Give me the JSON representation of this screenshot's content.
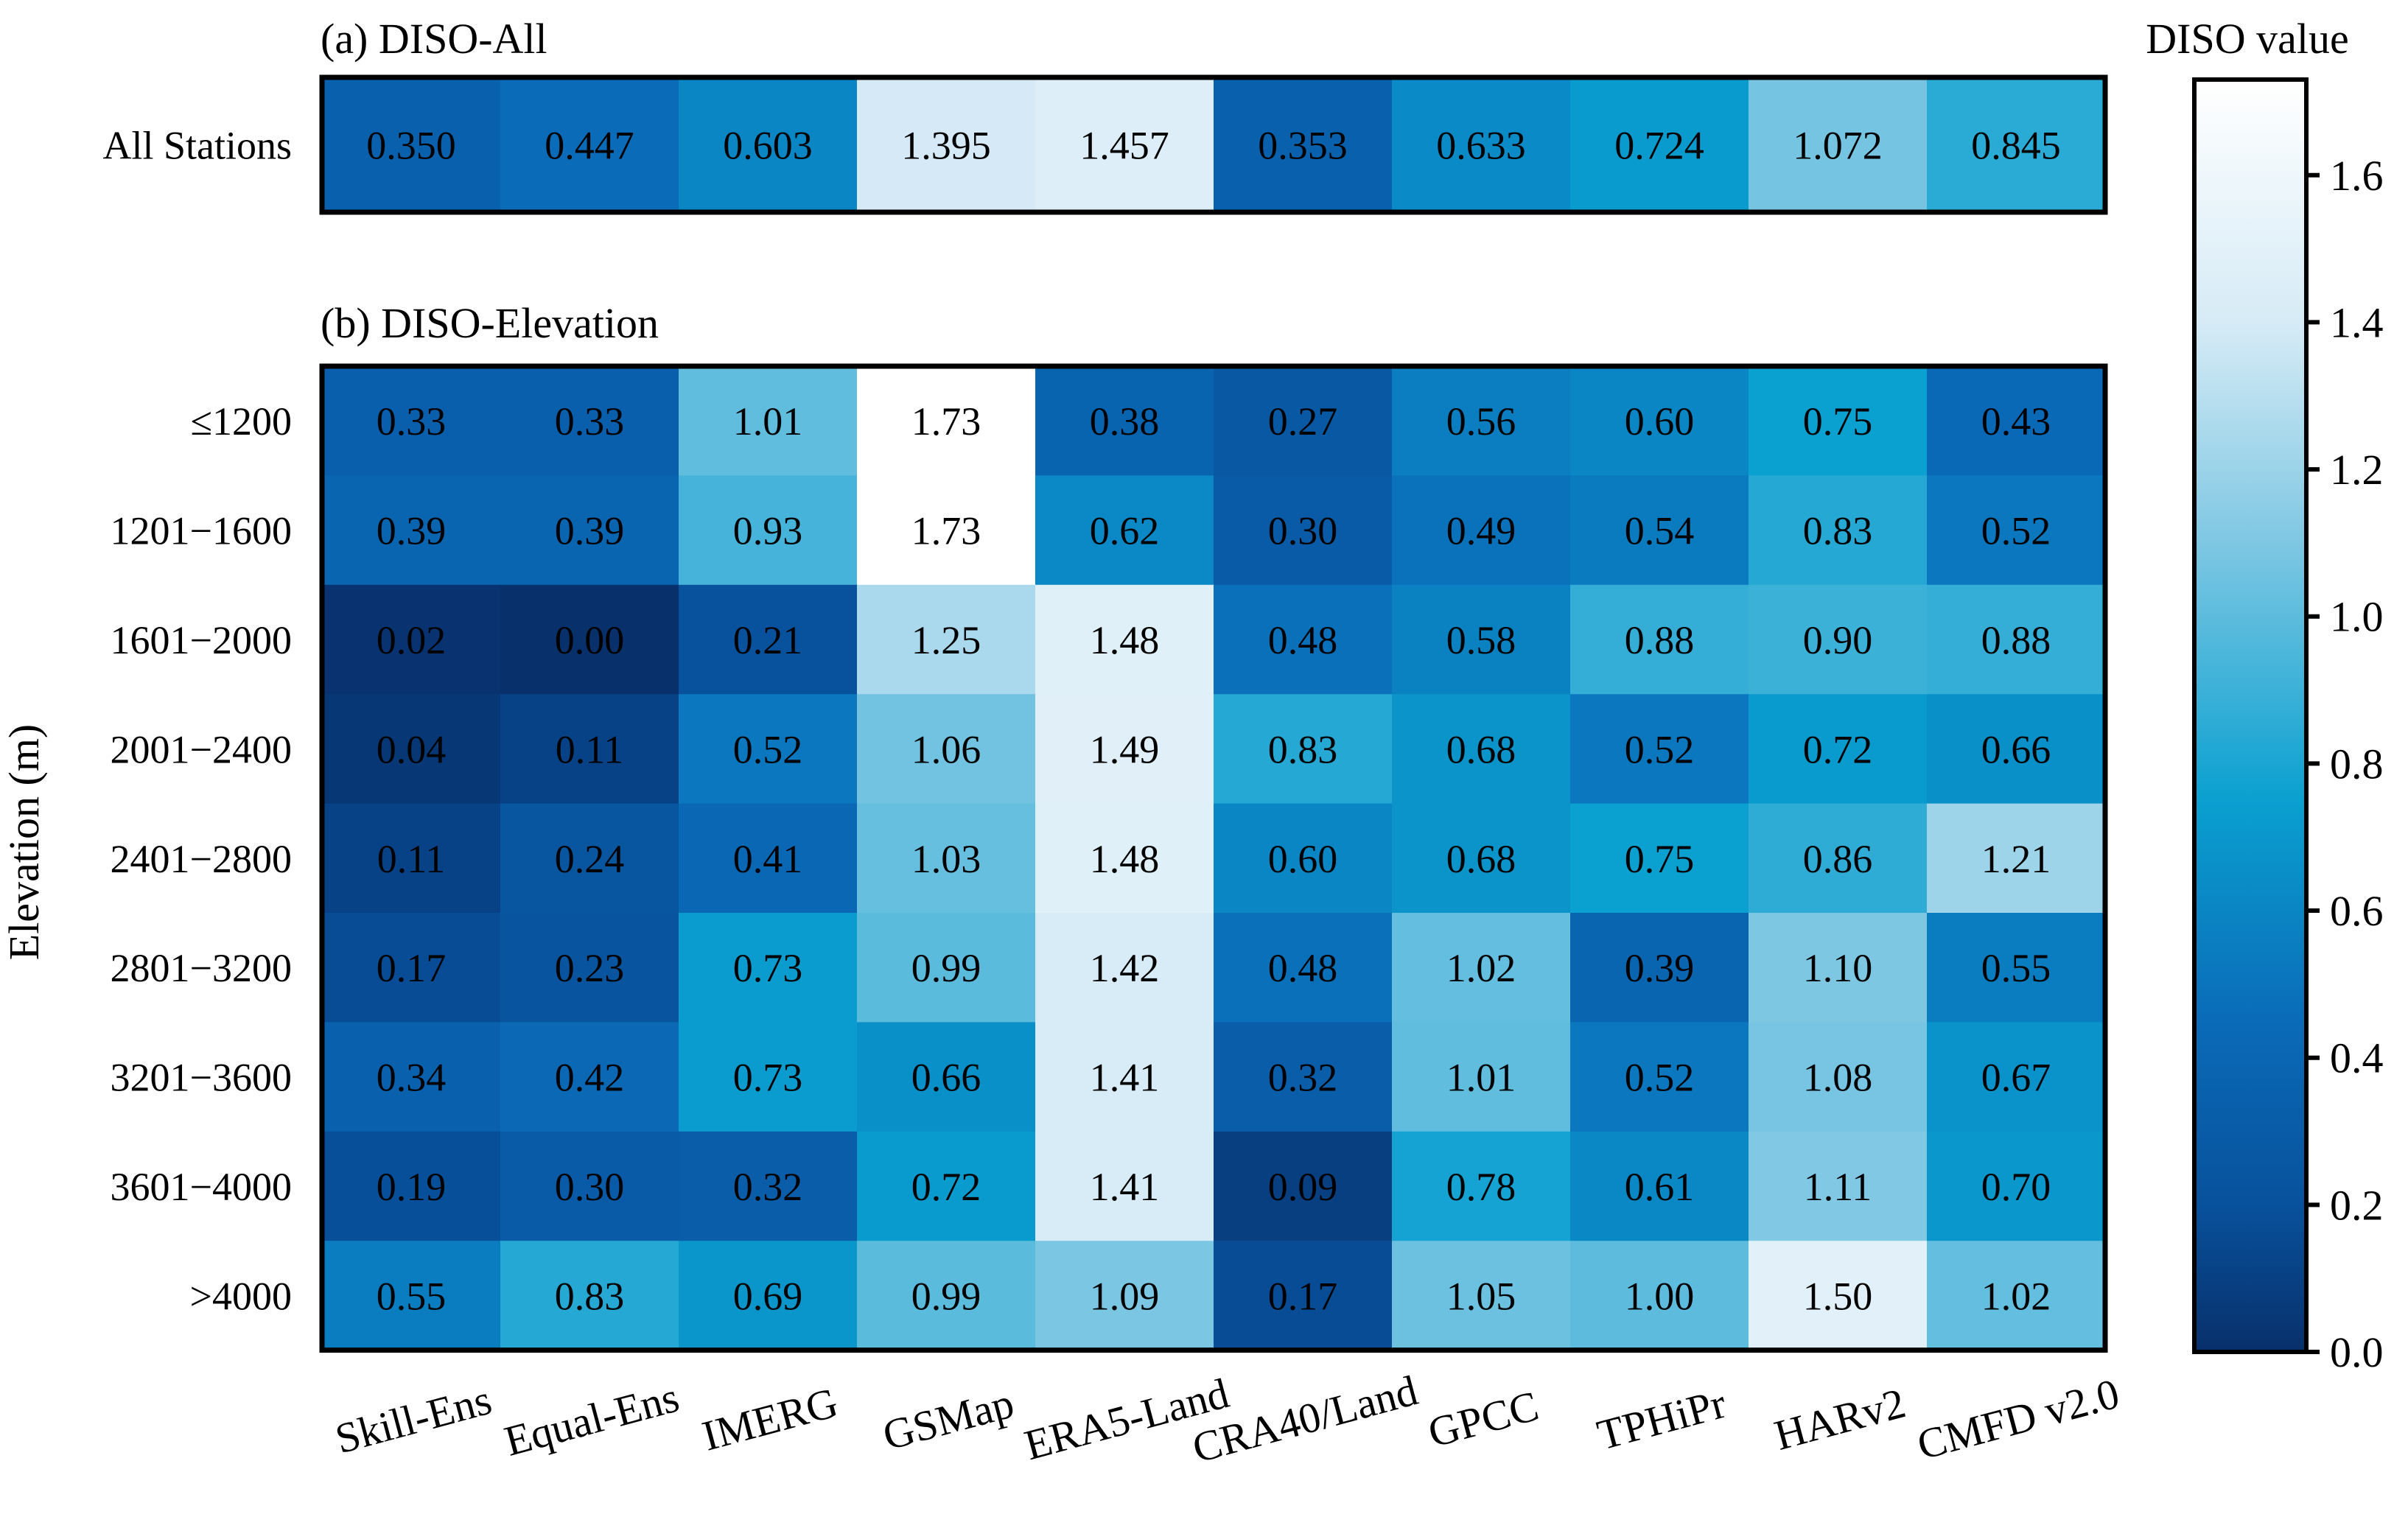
{
  "chart_data": {
    "type": "heatmap",
    "columns": [
      "Skill-Ens",
      "Equal-Ens",
      "IMERG",
      "GSMap",
      "ERA5-Land",
      "CRA40/Land",
      "GPCC",
      "TPHiPr",
      "HARv2",
      "CMFD v2.0"
    ],
    "panel_a": {
      "title": "(a) DISO-All",
      "rows": [
        "All Stations"
      ],
      "values": [
        [
          0.35,
          0.447,
          0.603,
          1.395,
          1.457,
          0.353,
          0.633,
          0.724,
          1.072,
          0.845
        ]
      ],
      "labels": [
        [
          "0.350",
          "0.447",
          "0.603",
          "1.395",
          "1.457",
          "0.353",
          "0.633",
          "0.724",
          "1.072",
          "0.845"
        ]
      ]
    },
    "panel_b": {
      "title": "(b) DISO-Elevation",
      "ylabel": "Elevation (m)",
      "rows": [
        "≤1200",
        "1201−1600",
        "1601−2000",
        "2001−2400",
        "2401−2800",
        "2801−3200",
        "3201−3600",
        "3601−4000",
        ">4000"
      ],
      "values": [
        [
          0.33,
          0.33,
          1.01,
          1.73,
          0.38,
          0.27,
          0.56,
          0.6,
          0.75,
          0.43
        ],
        [
          0.39,
          0.39,
          0.93,
          1.73,
          0.62,
          0.3,
          0.49,
          0.54,
          0.83,
          0.52
        ],
        [
          0.02,
          0.0,
          0.21,
          1.25,
          1.48,
          0.48,
          0.58,
          0.88,
          0.9,
          0.88
        ],
        [
          0.04,
          0.11,
          0.52,
          1.06,
          1.49,
          0.83,
          0.68,
          0.52,
          0.72,
          0.66
        ],
        [
          0.11,
          0.24,
          0.41,
          1.03,
          1.48,
          0.6,
          0.68,
          0.75,
          0.86,
          1.21
        ],
        [
          0.17,
          0.23,
          0.73,
          0.99,
          1.42,
          0.48,
          1.02,
          0.39,
          1.1,
          0.55
        ],
        [
          0.34,
          0.42,
          0.73,
          0.66,
          1.41,
          0.32,
          1.01,
          0.52,
          1.08,
          0.67
        ],
        [
          0.19,
          0.3,
          0.32,
          0.72,
          1.41,
          0.09,
          0.78,
          0.61,
          1.11,
          0.7
        ],
        [
          0.55,
          0.83,
          0.69,
          0.99,
          1.09,
          0.17,
          1.05,
          1.0,
          1.5,
          1.02
        ]
      ],
      "labels": [
        [
          "0.33",
          "0.33",
          "1.01",
          "1.73",
          "0.38",
          "0.27",
          "0.56",
          "0.60",
          "0.75",
          "0.43"
        ],
        [
          "0.39",
          "0.39",
          "0.93",
          "1.73",
          "0.62",
          "0.30",
          "0.49",
          "0.54",
          "0.83",
          "0.52"
        ],
        [
          "0.02",
          "0.00",
          "0.21",
          "1.25",
          "1.48",
          "0.48",
          "0.58",
          "0.88",
          "0.90",
          "0.88"
        ],
        [
          "0.04",
          "0.11",
          "0.52",
          "1.06",
          "1.49",
          "0.83",
          "0.68",
          "0.52",
          "0.72",
          "0.66"
        ],
        [
          "0.11",
          "0.24",
          "0.41",
          "1.03",
          "1.48",
          "0.60",
          "0.68",
          "0.75",
          "0.86",
          "1.21"
        ],
        [
          "0.17",
          "0.23",
          "0.73",
          "0.99",
          "1.42",
          "0.48",
          "1.02",
          "0.39",
          "1.10",
          "0.55"
        ],
        [
          "0.34",
          "0.42",
          "0.73",
          "0.66",
          "1.41",
          "0.32",
          "1.01",
          "0.52",
          "1.08",
          "0.67"
        ],
        [
          "0.19",
          "0.30",
          "0.32",
          "0.72",
          "1.41",
          "0.09",
          "0.78",
          "0.61",
          "1.11",
          "0.70"
        ],
        [
          "0.55",
          "0.83",
          "0.69",
          "0.99",
          "1.09",
          "0.17",
          "1.05",
          "1.00",
          "1.50",
          "1.02"
        ]
      ]
    },
    "colorbar": {
      "title": "DISO value",
      "range": [
        0.0,
        1.73
      ],
      "ticks": [
        0.0,
        0.2,
        0.4,
        0.6,
        0.8,
        1.0,
        1.2,
        1.4,
        1.6
      ],
      "tick_labels": [
        "0.0",
        "0.2",
        "0.4",
        "0.6",
        "0.8",
        "1.0",
        "1.2",
        "1.4",
        "1.6"
      ],
      "colormap": [
        {
          "v": 0.0,
          "color": "#08306b"
        },
        {
          "v": 0.2,
          "color": "#08519c"
        },
        {
          "v": 0.45,
          "color": "#0a6bb8"
        },
        {
          "v": 0.75,
          "color": "#0aa0d0"
        },
        {
          "v": 1.1,
          "color": "#7ec7e3"
        },
        {
          "v": 1.4,
          "color": "#d6ebf6"
        },
        {
          "v": 1.73,
          "color": "#ffffff"
        }
      ]
    }
  }
}
